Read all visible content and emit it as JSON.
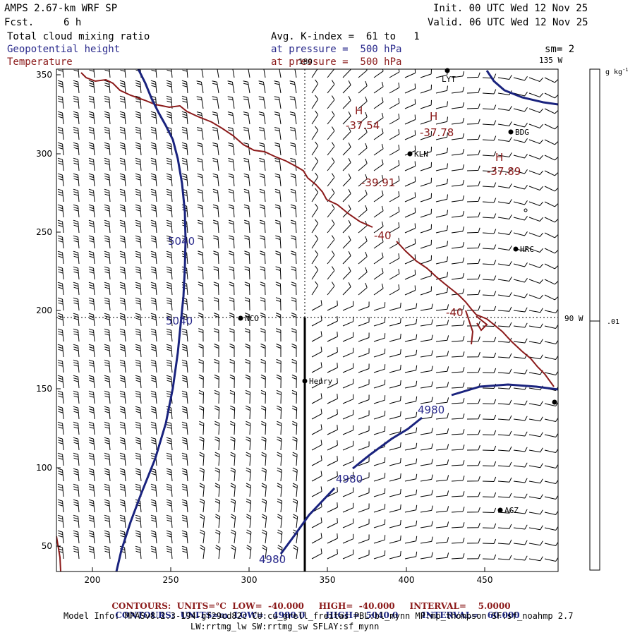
{
  "header": {
    "model": "AMPS 2.67-km WRF SP",
    "fcst_label": "Fcst.",
    "fcst_value": "6 h",
    "init": "Init. 00 UTC Wed 12 Nov 25",
    "valid": "Valid. 06 UTC Wed 12 Nov 25",
    "field1": "Total cloud mixing ratio",
    "field2": "Geopotential height",
    "field3": "Temperature",
    "avg": "Avg. K-index =  61 to   1",
    "pressure_blue": "at pressure =  500 hPa",
    "pressure_red": "at pressure =  500 hPa",
    "sm": "sm= 2"
  },
  "map": {
    "x_ticks": [
      "200",
      "250",
      "300",
      "350",
      "400",
      "450"
    ],
    "y_ticks": [
      "350",
      "300",
      "250",
      "200",
      "150",
      "100",
      "50"
    ],
    "lon_labels": {
      "top_180": "180",
      "top_135w": "135 W",
      "right_90w": "90 W"
    },
    "stations": [
      {
        "name": "LYT"
      },
      {
        "name": "BDG"
      },
      {
        "name": "KLN"
      },
      {
        "name": "HRC"
      },
      {
        "name": "NCO"
      },
      {
        "name": "Henry"
      },
      {
        "name": "AGZ"
      },
      {
        "name": ""
      }
    ],
    "contour_labels": {
      "height": [
        "5040",
        "5040",
        "4980",
        "4980",
        "4980"
      ],
      "temp": [
        "-40",
        "-40"
      ],
      "highs": [
        {
          "h": "H",
          "v": "-37.54"
        },
        {
          "h": "H",
          "v": "-37.78"
        },
        {
          "h": "H",
          "v": "-37.89"
        }
      ],
      "low_value": "-39.91"
    },
    "colors": {
      "temperature": "#8b1a1a",
      "height": "#1a237e",
      "barb": "#000000"
    }
  },
  "colorbar": {
    "unit": "g kg",
    "unit_sup": "-1",
    "value": ".01"
  },
  "footer": {
    "red": {
      "label": "CONTOURS:",
      "units": "UNITS=°C",
      "low": "LOW=  -40.000",
      "high": "HIGH=  -40.000",
      "interval": "INTERVAL=    5.0000"
    },
    "blue": {
      "label": "CONTOURS:",
      "units": "UNITS=m",
      "low": "LOW=   4980.0",
      "high": "HIGH=  5040.0",
      "interval": "INTERVAL=   60.000"
    },
    "info1": "Model Info: MPASv8.2.3-194-gf29cd82c CU:cu_grell_freitas PBL:bl_mynn MP:mp_thompson SF:sf_noahmp 2.7",
    "info2": "LW:rrtmg_lw SW:rrtmg_sw SFLAY:sf_mynn"
  }
}
